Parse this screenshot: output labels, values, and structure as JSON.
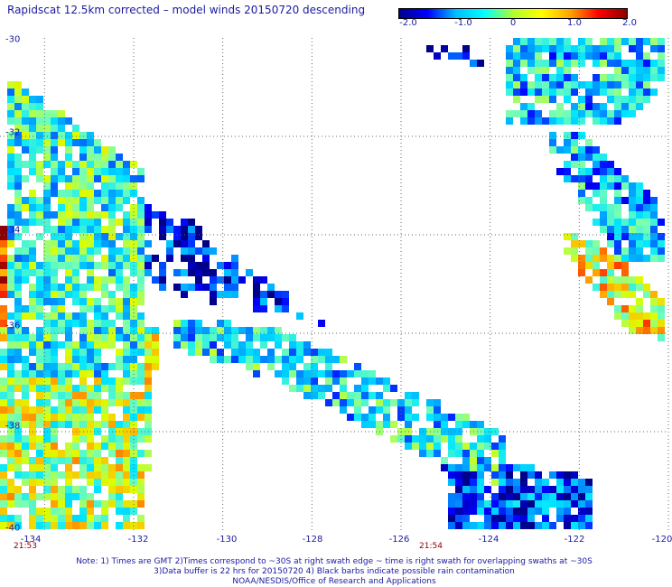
{
  "title": "Rapidscat 12.5km corrected – model winds 20150720 descending",
  "colorbar": {
    "labels": [
      "-2.0",
      "-1.0",
      "0",
      "1.0",
      "2.0"
    ],
    "colors": [
      "#00008b",
      "#0000ff",
      "#00bfff",
      "#00ffff",
      "#adff2f",
      "#ffff00",
      "#ffa500",
      "#ff0000",
      "#8b0000"
    ]
  },
  "map": {
    "lat_labels": [
      "-30",
      "-32",
      "-34",
      "-36",
      "-38",
      "-40"
    ],
    "lon_labels": [
      "-134",
      "-132",
      "-130",
      "-128",
      "-126",
      "-124",
      "-122",
      "-120"
    ],
    "lon_range": [
      -135.0,
      -120.0
    ],
    "lat_range": [
      -40.0,
      -30.0
    ],
    "grid": "dotted"
  },
  "times": [
    "21:53",
    "21:54"
  ],
  "notes": [
    "Note: 1) Times are GMT 2)Times correspond to ~30S at right swath edge ~ time is right swath for overlapping swaths at ~30S",
    "3)Data buffer is 22 hrs for 20150720 4) Black barbs indicate possible rain contamination",
    "NOAA/NESDIS/Office of Research and Applications"
  ]
}
